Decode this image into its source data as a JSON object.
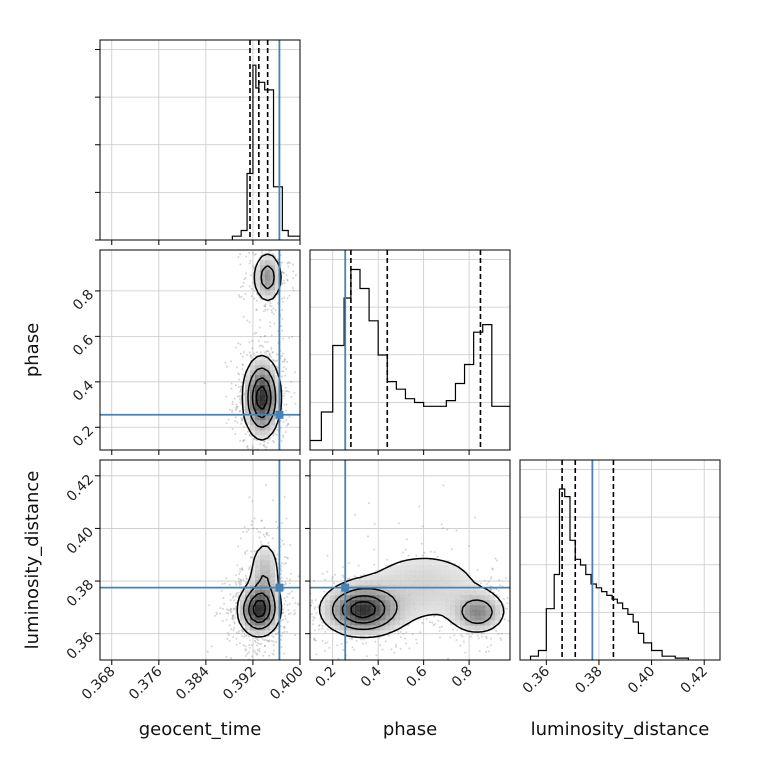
{
  "chart_data": {
    "type": "corner",
    "parameters": [
      "geocent_time",
      "phase",
      "luminosity_distance"
    ],
    "labels": {
      "geocent_time": "geocent_time",
      "phase": "phase",
      "luminosity_distance": "luminosity_distance"
    },
    "ranges": {
      "geocent_time": [
        0.366,
        0.4
      ],
      "phase": [
        0.1,
        0.98
      ],
      "luminosity_distance": [
        0.35,
        0.426
      ]
    },
    "ticks": {
      "geocent_time": [
        {
          "value": 0.368,
          "label": "0.368"
        },
        {
          "value": 0.376,
          "label": "0.376"
        },
        {
          "value": 0.384,
          "label": "0.384"
        },
        {
          "value": 0.392,
          "label": "0.392"
        },
        {
          "value": 0.4,
          "label": "0.400"
        }
      ],
      "phase": [
        {
          "value": 0.2,
          "label": "0.2"
        },
        {
          "value": 0.4,
          "label": "0.4"
        },
        {
          "value": 0.6,
          "label": "0.6"
        },
        {
          "value": 0.8,
          "label": "0.8"
        }
      ],
      "luminosity_distance": [
        {
          "value": 0.36,
          "label": "0.36"
        },
        {
          "value": 0.38,
          "label": "0.38"
        },
        {
          "value": 0.4,
          "label": "0.40"
        },
        {
          "value": 0.42,
          "label": "0.42"
        }
      ]
    },
    "grid": true,
    "injection": {
      "geocent_time": 0.3965,
      "phase": 0.255,
      "luminosity_distance": 0.3775
    },
    "injection_color": "#4682b4",
    "quantiles": {
      "geocent_time": [
        0.3915,
        0.393,
        0.3945
      ],
      "phase": [
        0.28,
        0.44,
        0.85
      ],
      "luminosity_distance": [
        0.366,
        0.371,
        0.3855
      ]
    },
    "histograms": {
      "geocent_time": {
        "edges": [
          0.3885,
          0.39,
          0.391,
          0.392,
          0.3925,
          0.393,
          0.394,
          0.3955,
          0.397,
          0.398,
          0.4
        ],
        "counts": [
          0.02,
          0.05,
          0.35,
          0.92,
          0.8,
          0.83,
          0.79,
          0.28,
          0.05,
          0.02
        ]
      },
      "phase": {
        "edges": [
          0.1,
          0.15,
          0.2,
          0.25,
          0.28,
          0.32,
          0.36,
          0.4,
          0.44,
          0.48,
          0.52,
          0.56,
          0.6,
          0.65,
          0.7,
          0.74,
          0.78,
          0.82,
          0.84,
          0.86,
          0.9,
          0.94,
          0.98
        ],
        "counts": [
          0.05,
          0.2,
          0.55,
          0.8,
          0.95,
          0.85,
          0.68,
          0.5,
          0.36,
          0.32,
          0.27,
          0.25,
          0.23,
          0.23,
          0.26,
          0.35,
          0.45,
          0.62,
          0.62,
          0.66,
          0.23,
          0.23
        ]
      },
      "luminosity_distance": {
        "edges": [
          0.354,
          0.357,
          0.36,
          0.363,
          0.365,
          0.367,
          0.369,
          0.371,
          0.373,
          0.375,
          0.377,
          0.379,
          0.381,
          0.383,
          0.385,
          0.387,
          0.389,
          0.391,
          0.393,
          0.395,
          0.397,
          0.4,
          0.404,
          0.409,
          0.414
        ],
        "counts": [
          0.02,
          0.05,
          0.27,
          0.45,
          0.9,
          0.86,
          0.63,
          0.53,
          0.5,
          0.45,
          0.4,
          0.38,
          0.36,
          0.34,
          0.32,
          0.3,
          0.27,
          0.24,
          0.2,
          0.14,
          0.09,
          0.05,
          0.02,
          0.01
        ]
      }
    },
    "density_peaks": {
      "geocent_time|phase": [
        {
          "x": 0.3935,
          "y": 0.33,
          "sx": 0.0016,
          "sy": 0.09,
          "w": 1.0
        },
        {
          "x": 0.3945,
          "y": 0.86,
          "sx": 0.0013,
          "sy": 0.06,
          "w": 0.5
        }
      ],
      "geocent_time|luminosity_distance": [
        {
          "x": 0.393,
          "y": 0.369,
          "sx": 0.0018,
          "sy": 0.005,
          "w": 1.0
        },
        {
          "x": 0.394,
          "y": 0.382,
          "sx": 0.0015,
          "sy": 0.008,
          "w": 0.35
        }
      ],
      "phase|luminosity_distance": [
        {
          "x": 0.33,
          "y": 0.369,
          "sx": 0.09,
          "sy": 0.005,
          "w": 1.0
        },
        {
          "x": 0.84,
          "y": 0.368,
          "sx": 0.06,
          "sy": 0.004,
          "w": 0.55
        },
        {
          "x": 0.6,
          "y": 0.378,
          "sx": 0.2,
          "sy": 0.01,
          "w": 0.22
        }
      ]
    }
  }
}
